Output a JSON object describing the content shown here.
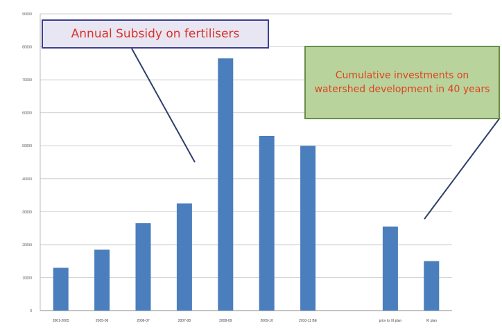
{
  "chart_data": {
    "type": "bar",
    "categories": [
      "2001-2005",
      "2005-06",
      "2006-07",
      "2007-08",
      "2008-09",
      "2009-10",
      "2010-11 BE",
      "",
      "prior to XI plan",
      "XI plan"
    ],
    "values": [
      13000,
      18500,
      26500,
      32500,
      76500,
      53000,
      50000,
      null,
      25500,
      15000
    ],
    "ylim": [
      0,
      90000
    ],
    "yticks": [
      0,
      10000,
      20000,
      30000,
      40000,
      50000,
      60000,
      70000,
      80000,
      90000
    ],
    "grid": true,
    "colors": {
      "bar": "#4a7ebd",
      "grid": "#cfcfcf"
    },
    "annotations": [
      {
        "text": "Annual Subsidy on fertilisers",
        "style": "red-callout"
      },
      {
        "text": "Cumulative investments on watershed development in 40 years",
        "style": "green-callout"
      }
    ]
  }
}
